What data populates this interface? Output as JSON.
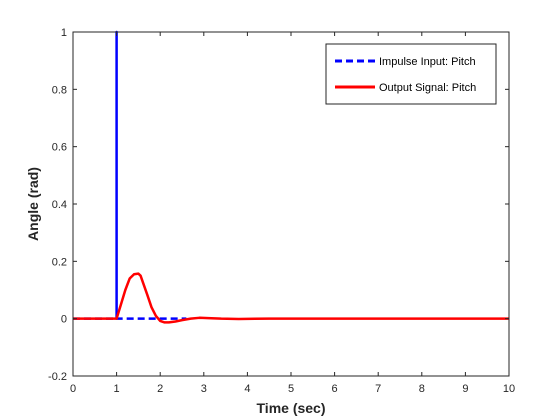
{
  "chart_data": {
    "type": "line",
    "title": "",
    "xlabel": "Time (sec)",
    "ylabel": "Angle (rad)",
    "xlim": [
      0,
      10
    ],
    "ylim": [
      -0.2,
      1
    ],
    "xticks": [
      "0",
      "1",
      "2",
      "3",
      "4",
      "5",
      "6",
      "7",
      "8",
      "9",
      "10"
    ],
    "yticks": [
      "-0.2",
      "0",
      "0.2",
      "0.4",
      "0.6",
      "0.8",
      "1"
    ],
    "grid": false,
    "legend_position": "top-right",
    "series": [
      {
        "name": "Impulse Input: Pitch",
        "color": "#0000ff",
        "style": "dashed",
        "x": [
          0,
          1,
          1,
          1,
          2.6
        ],
        "y": [
          0,
          0,
          1,
          0,
          0
        ]
      },
      {
        "name": "Output Signal: Pitch",
        "color": "#ff0000",
        "style": "solid",
        "x": [
          0,
          1.0,
          1.1,
          1.2,
          1.3,
          1.4,
          1.5,
          1.55,
          1.6,
          1.7,
          1.8,
          1.9,
          2.0,
          2.1,
          2.2,
          2.35,
          2.5,
          2.7,
          2.9,
          3.1,
          3.4,
          3.8,
          4.5,
          6,
          8,
          10
        ],
        "y": [
          0,
          0,
          0.05,
          0.1,
          0.14,
          0.155,
          0.157,
          0.15,
          0.128,
          0.085,
          0.04,
          0.01,
          -0.008,
          -0.013,
          -0.013,
          -0.01,
          -0.005,
          0.0,
          0.003,
          0.002,
          0.0,
          -0.001,
          0,
          0,
          0,
          0
        ]
      }
    ]
  }
}
